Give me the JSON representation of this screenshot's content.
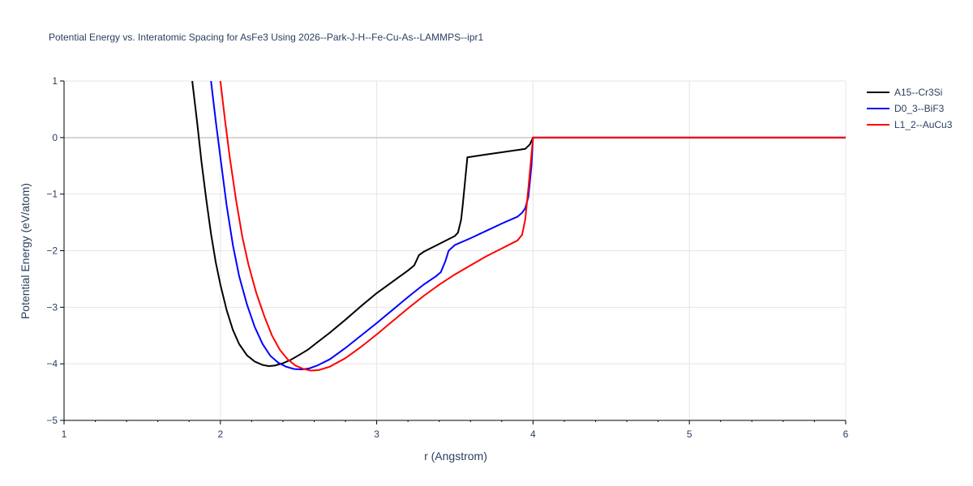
{
  "chart_data": {
    "type": "line",
    "title": "Potential Energy vs. Interatomic Spacing for AsFe3 Using 2026--Park-J-H--Fe-Cu-As--LAMMPS--ipr1",
    "xlabel": "r (Angstrom)",
    "ylabel": "Potential Energy (eV/atom)",
    "xlim": [
      1,
      6
    ],
    "ylim": [
      -5,
      1
    ],
    "xticks": [
      1,
      2,
      3,
      4,
      5,
      6
    ],
    "yticks": [
      1,
      0,
      -1,
      -2,
      -3,
      -4,
      -5
    ],
    "ytick_labels": [
      "1",
      "0",
      "−1",
      "−2",
      "−3",
      "−4",
      "−5"
    ],
    "grid": true,
    "legend_position": "top-right",
    "series": [
      {
        "name": "A15--Cr3Si",
        "color": "#000000",
        "x": [
          1.82,
          1.85,
          1.88,
          1.91,
          1.94,
          1.97,
          2.0,
          2.04,
          2.08,
          2.12,
          2.17,
          2.22,
          2.27,
          2.31,
          2.35,
          2.4,
          2.45,
          2.5,
          2.56,
          2.62,
          2.7,
          2.8,
          2.9,
          3.0,
          3.1,
          3.2,
          3.24,
          3.27,
          3.3,
          3.4,
          3.5,
          3.52,
          3.54,
          3.55,
          3.58,
          3.7,
          3.8,
          3.9,
          3.95,
          3.98,
          4.0,
          6.0
        ],
        "y": [
          1.0,
          0.3,
          -0.45,
          -1.1,
          -1.7,
          -2.2,
          -2.6,
          -3.05,
          -3.4,
          -3.65,
          -3.85,
          -3.96,
          -4.02,
          -4.04,
          -4.03,
          -3.99,
          -3.93,
          -3.85,
          -3.75,
          -3.62,
          -3.45,
          -3.22,
          -2.98,
          -2.75,
          -2.55,
          -2.35,
          -2.26,
          -2.08,
          -2.02,
          -1.88,
          -1.74,
          -1.68,
          -1.45,
          -1.2,
          -0.35,
          -0.3,
          -0.26,
          -0.22,
          -0.2,
          -0.12,
          0.0,
          0.0
        ]
      },
      {
        "name": "D0_3--BiF3",
        "color": "#0000ff",
        "x": [
          1.94,
          1.97,
          2.0,
          2.04,
          2.08,
          2.12,
          2.17,
          2.22,
          2.27,
          2.32,
          2.37,
          2.42,
          2.47,
          2.52,
          2.57,
          2.62,
          2.7,
          2.8,
          2.9,
          3.0,
          3.1,
          3.2,
          3.3,
          3.38,
          3.41,
          3.44,
          3.46,
          3.5,
          3.6,
          3.7,
          3.8,
          3.9,
          3.93,
          3.95,
          3.97,
          3.99,
          4.0,
          6.0
        ],
        "y": [
          1.0,
          0.3,
          -0.35,
          -1.2,
          -1.9,
          -2.45,
          -2.95,
          -3.35,
          -3.65,
          -3.86,
          -3.98,
          -4.05,
          -4.09,
          -4.1,
          -4.08,
          -4.03,
          -3.92,
          -3.72,
          -3.5,
          -3.28,
          -3.05,
          -2.82,
          -2.6,
          -2.45,
          -2.38,
          -2.18,
          -2.0,
          -1.9,
          -1.78,
          -1.65,
          -1.52,
          -1.4,
          -1.33,
          -1.25,
          -1.05,
          -0.5,
          0.0,
          0.0
        ]
      },
      {
        "name": "L1_2--AuCu3",
        "color": "#ff0000",
        "x": [
          2.0,
          2.03,
          2.06,
          2.1,
          2.14,
          2.18,
          2.23,
          2.28,
          2.33,
          2.38,
          2.43,
          2.48,
          2.53,
          2.58,
          2.63,
          2.7,
          2.8,
          2.9,
          3.0,
          3.1,
          3.2,
          3.3,
          3.4,
          3.5,
          3.6,
          3.7,
          3.8,
          3.85,
          3.9,
          3.93,
          3.95,
          3.97,
          3.99,
          4.0,
          6.0
        ],
        "y": [
          1.0,
          0.3,
          -0.35,
          -1.1,
          -1.75,
          -2.25,
          -2.75,
          -3.15,
          -3.5,
          -3.75,
          -3.92,
          -4.03,
          -4.09,
          -4.12,
          -4.11,
          -4.05,
          -3.9,
          -3.7,
          -3.48,
          -3.25,
          -3.02,
          -2.8,
          -2.6,
          -2.42,
          -2.26,
          -2.1,
          -1.96,
          -1.89,
          -1.82,
          -1.72,
          -1.45,
          -0.9,
          -0.3,
          0.0,
          0.0
        ]
      }
    ]
  }
}
